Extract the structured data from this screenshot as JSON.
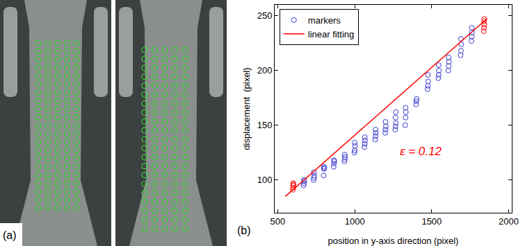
{
  "image": {
    "label": "(a)"
  },
  "chart_data": {
    "type": "scatter",
    "panel_label": "(b)",
    "x_label": "position in y-axis direction (pixel)",
    "y_label": "displacement  (pixel)",
    "xlim": [
      480,
      2020
    ],
    "ylim": [
      70,
      260
    ],
    "xticks": [
      500,
      1000,
      1500,
      2000
    ],
    "yticks": [
      100,
      150,
      200,
      250
    ],
    "grid": false,
    "legend": "upper left",
    "series": [
      {
        "name": "markers",
        "color": "#3a3ad0",
        "marker": "circle-open",
        "type": "scatter",
        "x": [
          668,
          670,
          672,
          670,
          733,
          735,
          737,
          735,
          798,
          800,
          802,
          800,
          863,
          865,
          867,
          865,
          933,
          935,
          937,
          935,
          998,
          1000,
          1002,
          1000,
          1063,
          1065,
          1067,
          1065,
          1133,
          1135,
          1137,
          1135,
          1198,
          1200,
          1202,
          1200,
          1263,
          1265,
          1267,
          1265,
          1267,
          1328,
          1330,
          1332,
          1330,
          1398,
          1400,
          1402,
          1473,
          1475,
          1477,
          1475,
          1543,
          1545,
          1547,
          1545,
          1608,
          1610,
          1612,
          1610,
          1688,
          1690,
          1692,
          1690,
          1758,
          1760,
          1762,
          1760
        ],
        "values": [
          95,
          97,
          99,
          100,
          100,
          102,
          104,
          107,
          104,
          110,
          111,
          112,
          112,
          115,
          117,
          118,
          117,
          119,
          121,
          123,
          125,
          127,
          131,
          134,
          130,
          133,
          136,
          139,
          137,
          140,
          143,
          146,
          143,
          146,
          149,
          153,
          146,
          149,
          152,
          157,
          162,
          150,
          157,
          162,
          166,
          169,
          172,
          174,
          183,
          186,
          190,
          196,
          193,
          196,
          200,
          205,
          200,
          204,
          208,
          212,
          214,
          218,
          224,
          229,
          227,
          231,
          235,
          239
        ]
      },
      {
        "color": "#ff0000",
        "marker": "circle-open",
        "type": "scatter",
        "x": [
          598,
          600,
          602,
          600,
          601,
          1838,
          1840,
          1842,
          1840,
          1841
        ],
        "values": [
          91,
          93,
          95,
          96,
          97,
          236,
          239,
          242,
          245,
          247
        ]
      },
      {
        "name": "linear fitting",
        "color": "#ff0000",
        "type": "line",
        "line_style": "solid",
        "x": [
          550,
          1860
        ],
        "values": [
          85,
          247.5
        ]
      }
    ],
    "annotations": [
      {
        "text": "ε = 0.12",
        "x": 1430,
        "y": 126,
        "color": "#ff0000"
      }
    ]
  }
}
